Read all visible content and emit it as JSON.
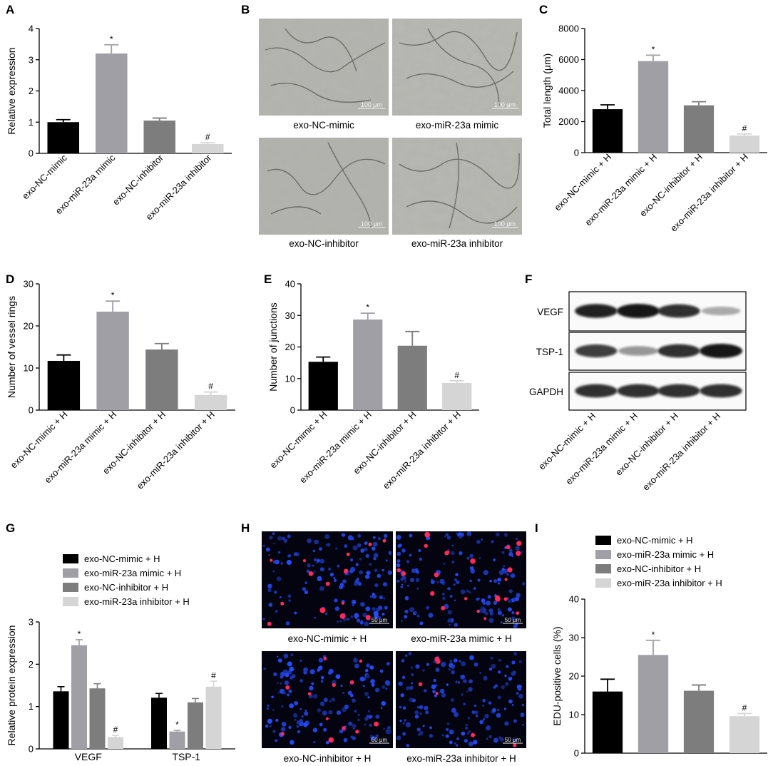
{
  "panels": {
    "A": {
      "letter": "A"
    },
    "B": {
      "letter": "B"
    },
    "C": {
      "letter": "C"
    },
    "D": {
      "letter": "D"
    },
    "E": {
      "letter": "E"
    },
    "F": {
      "letter": "F"
    },
    "G": {
      "letter": "G"
    },
    "H": {
      "letter": "H"
    },
    "I": {
      "letter": "I"
    }
  },
  "micrographs_B": {
    "captions": [
      "exo-NC-mimic",
      "exo-miR-23a mimic",
      "exo-NC-inhibitor",
      "exo-miR-23a inhibitor"
    ],
    "scale_bar": "100 μm"
  },
  "micrographs_H": {
    "captions": [
      "exo-NC-mimic + H",
      "exo-miR-23a mimic + H",
      "exo-NC-inhibitor + H",
      "exo-miR-23a inhibitor + H"
    ],
    "scale_bar": "50 μm"
  },
  "western_F": {
    "rows": [
      "VEGF",
      "TSP-1",
      "GAPDH"
    ],
    "lanes": [
      "exo-NC-mimic + H",
      "exo-miR-23a mimic + H",
      "exo-NC-inhibitor + H",
      "exo-miR-23a inhibitor + H"
    ],
    "band_intensity": [
      [
        0.95,
        1.0,
        0.9,
        0.35
      ],
      [
        0.85,
        0.45,
        0.9,
        1.0
      ],
      [
        0.9,
        0.9,
        0.9,
        0.9
      ]
    ]
  },
  "colors": {
    "s1": "#000000",
    "s2": "#9f9fa5",
    "s3": "#7d7d7d",
    "s4": "#d5d5d5"
  },
  "chart_data": [
    {
      "panel": "A",
      "type": "bar",
      "categories": [
        "exo-NC-mimic",
        "exo-miR-23a mimic",
        "exo-NC-inhibitor",
        "exo-miR-23a inhibitor"
      ],
      "values": [
        1.0,
        3.2,
        1.05,
        0.3
      ],
      "errors": [
        0.08,
        0.28,
        0.08,
        0.04
      ],
      "sig": [
        "",
        "*",
        "",
        "#"
      ],
      "ylabel": "Relative expression",
      "ylim": [
        0,
        4
      ],
      "yticks": [
        0,
        1,
        2,
        3,
        4
      ]
    },
    {
      "panel": "C",
      "type": "bar",
      "categories": [
        "exo-NC-mimic + H",
        "exo-miR-23a mimic + H",
        "exo-NC-inhibitor + H",
        "exo-miR-23a inhibitor + H"
      ],
      "values": [
        2800,
        5900,
        3050,
        1100
      ],
      "errors": [
        280,
        380,
        230,
        100
      ],
      "sig": [
        "",
        "*",
        "",
        "#"
      ],
      "ylabel": "Total length (μm)",
      "ylim": [
        0,
        8000
      ],
      "yticks": [
        0,
        2000,
        4000,
        6000,
        8000
      ]
    },
    {
      "panel": "D",
      "type": "bar",
      "categories": [
        "exo-NC-mimic + H",
        "exo-miR-23a mimic + H",
        "exo-NC-inhibitor + H",
        "exo-miR-23a inhibitor + H"
      ],
      "values": [
        11.7,
        23.4,
        14.4,
        3.6
      ],
      "errors": [
        1.4,
        2.5,
        1.4,
        0.7
      ],
      "sig": [
        "",
        "*",
        "",
        "#"
      ],
      "ylabel": "Number of vessel rings",
      "ylim": [
        0,
        30
      ],
      "yticks": [
        0,
        10,
        20,
        30
      ]
    },
    {
      "panel": "E",
      "type": "bar",
      "categories": [
        "exo-NC-mimic + H",
        "exo-miR-23a mimic + H",
        "exo-NC-inhibitor + H",
        "exo-miR-23a inhibitor + H"
      ],
      "values": [
        15.3,
        28.7,
        20.4,
        8.6
      ],
      "errors": [
        1.5,
        2.0,
        4.5,
        0.7
      ],
      "sig": [
        "",
        "*",
        "",
        "#"
      ],
      "ylabel": "Number of junctions",
      "ylim": [
        0,
        40
      ],
      "yticks": [
        0,
        10,
        20,
        30,
        40
      ]
    },
    {
      "panel": "G",
      "type": "bar",
      "categories": [
        "VEGF",
        "TSP-1"
      ],
      "series": [
        {
          "name": "exo-NC-mimic + H",
          "values": [
            1.36,
            1.21
          ],
          "errors": [
            0.11,
            0.1
          ],
          "sig": [
            "",
            ""
          ]
        },
        {
          "name": "exo-miR-23a mimic + H",
          "values": [
            2.45,
            0.41
          ],
          "errors": [
            0.13,
            0.03
          ],
          "sig": [
            "*",
            "*"
          ]
        },
        {
          "name": "exo-NC-inhibitor + H",
          "values": [
            1.43,
            1.1
          ],
          "errors": [
            0.11,
            0.09
          ],
          "sig": [
            "",
            ""
          ]
        },
        {
          "name": "exo-miR-23a inhibitor + H",
          "values": [
            0.28,
            1.47
          ],
          "errors": [
            0.04,
            0.13
          ],
          "sig": [
            "#",
            "#"
          ]
        }
      ],
      "ylabel": "Relative protein expression",
      "ylim": [
        0,
        3
      ],
      "yticks": [
        0,
        1,
        2,
        3
      ],
      "legend": "top"
    },
    {
      "panel": "I",
      "type": "bar",
      "categories": [
        "exo-NC-mimic + H",
        "exo-miR-23a mimic + H",
        "exo-NC-inhibitor + H",
        "exo-miR-23a inhibitor + H"
      ],
      "values": [
        16.0,
        25.5,
        16.2,
        9.6
      ],
      "errors": [
        3.2,
        3.8,
        1.5,
        0.7
      ],
      "sig": [
        "",
        "*",
        "",
        "#"
      ],
      "ylabel": "EDU-positive cells (%)",
      "ylim": [
        0,
        40
      ],
      "yticks": [
        0,
        10,
        20,
        30,
        40
      ],
      "legend": "top"
    }
  ]
}
